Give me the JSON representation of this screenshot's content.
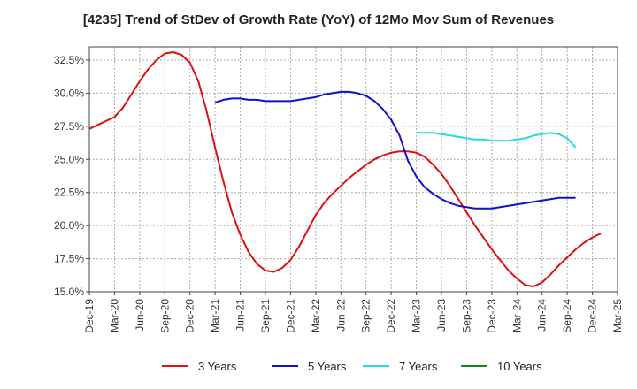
{
  "chart_data": {
    "type": "line",
    "title": "[4235]  Trend of StDev of Growth Rate (YoY) of 12Mo Mov Sum of Revenues",
    "xlabel": "",
    "ylabel": "",
    "ylim": [
      15.0,
      33.5
    ],
    "x_tick_labels": [
      "Dec-19",
      "Mar-20",
      "Jun-20",
      "Sep-20",
      "Dec-20",
      "Mar-21",
      "Jun-21",
      "Sep-21",
      "Dec-21",
      "Mar-22",
      "Jun-22",
      "Sep-22",
      "Dec-22",
      "Mar-23",
      "Jun-23",
      "Sep-23",
      "Dec-23",
      "Mar-24",
      "Jun-24",
      "Sep-24",
      "Dec-24",
      "Mar-25"
    ],
    "y_ticks": [
      15.0,
      17.5,
      20.0,
      22.5,
      25.0,
      27.5,
      30.0,
      32.5
    ],
    "y_tick_labels": [
      "15.0%",
      "17.5%",
      "20.0%",
      "22.5%",
      "25.0%",
      "27.5%",
      "30.0%",
      "32.5%"
    ],
    "grid": true,
    "legend_position": "bottom",
    "series": [
      {
        "name": "3 Years",
        "color": "#dd1111",
        "start_index": 0,
        "values": [
          27.3,
          27.6,
          27.9,
          28.2,
          28.9,
          29.9,
          30.9,
          31.8,
          32.5,
          33.0,
          33.1,
          32.9,
          32.3,
          30.9,
          28.6,
          25.9,
          23.3,
          21.0,
          19.3,
          18.0,
          17.1,
          16.6,
          16.5,
          16.8,
          17.4,
          18.4,
          19.6,
          20.8,
          21.7,
          22.4,
          23.0,
          23.6,
          24.1,
          24.6,
          25.0,
          25.3,
          25.5,
          25.6,
          25.6,
          25.5,
          25.2,
          24.6,
          23.9,
          23.0,
          22.0,
          21.0,
          20.0,
          19.1,
          18.2,
          17.4,
          16.6,
          16.0,
          15.5,
          15.4,
          15.7,
          16.3,
          17.0,
          17.6,
          18.2,
          18.7,
          19.1,
          19.4
        ]
      },
      {
        "name": "5 Years",
        "color": "#1111cc",
        "start_index": 15,
        "values": [
          29.3,
          29.5,
          29.6,
          29.6,
          29.5,
          29.5,
          29.4,
          29.4,
          29.4,
          29.4,
          29.5,
          29.6,
          29.7,
          29.9,
          30.0,
          30.1,
          30.1,
          30.0,
          29.8,
          29.4,
          28.8,
          28.0,
          26.8,
          24.9,
          23.7,
          22.9,
          22.4,
          22.0,
          21.7,
          21.5,
          21.4,
          21.3,
          21.3,
          21.3,
          21.4,
          21.5,
          21.6,
          21.7,
          21.8,
          21.9,
          22.0,
          22.1,
          22.1,
          22.1
        ]
      },
      {
        "name": "7 Years",
        "color": "#22dddd",
        "start_index": 39,
        "values": [
          27.0,
          27.0,
          27.0,
          26.9,
          26.8,
          26.7,
          26.6,
          26.5,
          26.5,
          26.4,
          26.4,
          26.4,
          26.5,
          26.6,
          26.8,
          26.9,
          27.0,
          26.9,
          26.6,
          25.9
        ]
      },
      {
        "name": "10 Years",
        "color": "#118811",
        "start_index": 0,
        "values": []
      }
    ]
  }
}
